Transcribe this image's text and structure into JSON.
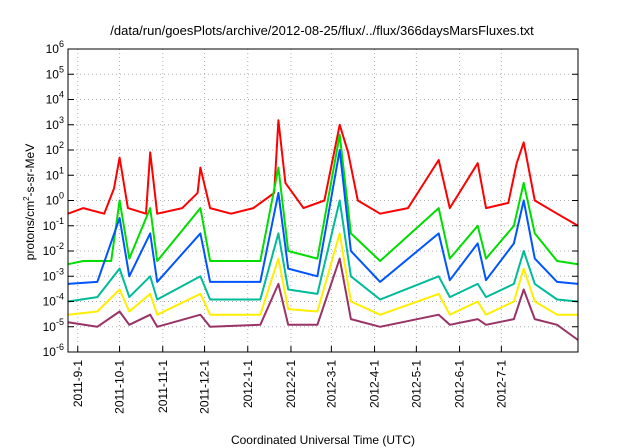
{
  "chart_data": {
    "type": "line",
    "title": "/data/run/goesPlots/archive/2012-08-25/flux/../flux/366daysMarsFluxes.txt",
    "xlabel": "Coordinated Universal Time (UTC)",
    "ylabel": "protons/cm2-s-sr-MeV",
    "ylabel_base": "protons/cm",
    "ylabel_sup": "2",
    "ylabel_rest": "-s-sr-MeV",
    "y_scale": "log",
    "ylim": [
      1e-06,
      1000000.0
    ],
    "xlim": [
      "2011-08-25",
      "2012-08-25"
    ],
    "grid": true,
    "legend": "none",
    "y_ticks": [
      {
        "base": "10",
        "exp": "-6",
        "value": 1e-06
      },
      {
        "base": "10",
        "exp": "-5",
        "value": 1e-05
      },
      {
        "base": "10",
        "exp": "-4",
        "value": 0.0001
      },
      {
        "base": "10",
        "exp": "-3",
        "value": 0.001
      },
      {
        "base": "10",
        "exp": "-2",
        "value": 0.01
      },
      {
        "base": "10",
        "exp": "-1",
        "value": 0.1
      },
      {
        "base": "10",
        "exp": "0",
        "value": 1
      },
      {
        "base": "10",
        "exp": "1",
        "value": 10
      },
      {
        "base": "10",
        "exp": "2",
        "value": 100
      },
      {
        "base": "10",
        "exp": "3",
        "value": 1000
      },
      {
        "base": "10",
        "exp": "4",
        "value": 10000
      },
      {
        "base": "10",
        "exp": "5",
        "value": 100000
      },
      {
        "base": "10",
        "exp": "6",
        "value": 1000000
      }
    ],
    "x_ticks": [
      {
        "label": "2011-9-1",
        "date": "2011-09-01"
      },
      {
        "label": "2011-10-1",
        "date": "2011-10-01"
      },
      {
        "label": "2011-11-1",
        "date": "2011-11-01"
      },
      {
        "label": "2011-12-1",
        "date": "2011-12-01"
      },
      {
        "label": "2012-1-1",
        "date": "2012-01-01"
      },
      {
        "label": "2012-2-1",
        "date": "2012-02-01"
      },
      {
        "label": "2012-3-1",
        "date": "2012-03-01"
      },
      {
        "label": "2012-4-1",
        "date": "2012-04-01"
      },
      {
        "label": "2012-5-1",
        "date": "2012-05-01"
      },
      {
        "label": "2012-6-1",
        "date": "2012-06-01"
      },
      {
        "label": "2012-7-1",
        "date": "2012-07-01"
      }
    ],
    "series": [
      {
        "color": "#ff0000",
        "points": [
          [
            "2011-08-25",
            0.3
          ],
          [
            "2011-09-05",
            0.5
          ],
          [
            "2011-09-20",
            0.3
          ],
          [
            "2011-09-27",
            3
          ],
          [
            "2011-10-01",
            50
          ],
          [
            "2011-10-07",
            0.5
          ],
          [
            "2011-10-20",
            0.3
          ],
          [
            "2011-10-23",
            80
          ],
          [
            "2011-10-28",
            0.3
          ],
          [
            "2011-11-15",
            0.5
          ],
          [
            "2011-11-26",
            2
          ],
          [
            "2011-11-28",
            20
          ],
          [
            "2011-12-05",
            0.5
          ],
          [
            "2011-12-20",
            0.3
          ],
          [
            "2012-01-05",
            0.5
          ],
          [
            "2012-01-20",
            2
          ],
          [
            "2012-01-23",
            1500
          ],
          [
            "2012-01-28",
            5
          ],
          [
            "2012-02-10",
            0.5
          ],
          [
            "2012-02-25",
            1
          ],
          [
            "2012-03-07",
            1000
          ],
          [
            "2012-03-13",
            80
          ],
          [
            "2012-03-20",
            1
          ],
          [
            "2012-04-05",
            0.3
          ],
          [
            "2012-04-25",
            0.5
          ],
          [
            "2012-05-17",
            40
          ],
          [
            "2012-05-25",
            0.5
          ],
          [
            "2012-06-14",
            30
          ],
          [
            "2012-06-20",
            0.5
          ],
          [
            "2012-07-06",
            0.8
          ],
          [
            "2012-07-12",
            30
          ],
          [
            "2012-07-17",
            200
          ],
          [
            "2012-07-25",
            1
          ],
          [
            "2012-08-10",
            0.3
          ],
          [
            "2012-08-25",
            0.1
          ]
        ]
      },
      {
        "color": "#00dd00",
        "points": [
          [
            "2011-08-25",
            0.003
          ],
          [
            "2011-09-05",
            0.004
          ],
          [
            "2011-09-25",
            0.004
          ],
          [
            "2011-10-01",
            1
          ],
          [
            "2011-10-08",
            0.005
          ],
          [
            "2011-10-23",
            0.5
          ],
          [
            "2011-10-28",
            0.004
          ],
          [
            "2011-11-28",
            0.5
          ],
          [
            "2011-12-05",
            0.004
          ],
          [
            "2012-01-10",
            0.004
          ],
          [
            "2012-01-23",
            20
          ],
          [
            "2012-01-30",
            0.01
          ],
          [
            "2012-02-20",
            0.005
          ],
          [
            "2012-03-07",
            400
          ],
          [
            "2012-03-15",
            0.05
          ],
          [
            "2012-04-05",
            0.004
          ],
          [
            "2012-05-17",
            0.5
          ],
          [
            "2012-05-25",
            0.005
          ],
          [
            "2012-06-14",
            0.1
          ],
          [
            "2012-06-20",
            0.005
          ],
          [
            "2012-07-10",
            0.1
          ],
          [
            "2012-07-17",
            5
          ],
          [
            "2012-07-25",
            0.05
          ],
          [
            "2012-08-10",
            0.004
          ],
          [
            "2012-08-25",
            0.003
          ]
        ]
      },
      {
        "color": "#0055ff",
        "points": [
          [
            "2011-08-25",
            0.0005
          ],
          [
            "2011-09-15",
            0.0006
          ],
          [
            "2011-10-01",
            0.2
          ],
          [
            "2011-10-08",
            0.001
          ],
          [
            "2011-10-23",
            0.05
          ],
          [
            "2011-10-28",
            0.0006
          ],
          [
            "2011-11-28",
            0.05
          ],
          [
            "2011-12-05",
            0.0006
          ],
          [
            "2012-01-10",
            0.0006
          ],
          [
            "2012-01-23",
            2
          ],
          [
            "2012-01-30",
            0.002
          ],
          [
            "2012-02-20",
            0.001
          ],
          [
            "2012-03-07",
            100
          ],
          [
            "2012-03-15",
            0.01
          ],
          [
            "2012-04-05",
            0.0006
          ],
          [
            "2012-05-17",
            0.05
          ],
          [
            "2012-05-25",
            0.0007
          ],
          [
            "2012-06-14",
            0.02
          ],
          [
            "2012-06-20",
            0.0007
          ],
          [
            "2012-07-10",
            0.02
          ],
          [
            "2012-07-17",
            1
          ],
          [
            "2012-07-25",
            0.005
          ],
          [
            "2012-08-10",
            0.0006
          ],
          [
            "2012-08-25",
            0.0005
          ]
        ]
      },
      {
        "color": "#00bb99",
        "points": [
          [
            "2011-08-25",
            0.0001
          ],
          [
            "2011-09-15",
            0.00015
          ],
          [
            "2011-10-01",
            0.002
          ],
          [
            "2011-10-08",
            0.00015
          ],
          [
            "2011-10-23",
            0.001
          ],
          [
            "2011-10-28",
            0.00012
          ],
          [
            "2011-11-28",
            0.001
          ],
          [
            "2011-12-05",
            0.00012
          ],
          [
            "2012-01-10",
            0.00012
          ],
          [
            "2012-01-23",
            0.05
          ],
          [
            "2012-01-30",
            0.0003
          ],
          [
            "2012-02-20",
            0.0002
          ],
          [
            "2012-03-07",
            1
          ],
          [
            "2012-03-15",
            0.001
          ],
          [
            "2012-04-05",
            0.00012
          ],
          [
            "2012-05-17",
            0.001
          ],
          [
            "2012-05-25",
            0.00015
          ],
          [
            "2012-06-14",
            0.0005
          ],
          [
            "2012-06-20",
            0.00015
          ],
          [
            "2012-07-10",
            0.0005
          ],
          [
            "2012-07-17",
            0.01
          ],
          [
            "2012-07-25",
            0.0005
          ],
          [
            "2012-08-10",
            0.00012
          ],
          [
            "2012-08-25",
            0.0001
          ]
        ]
      },
      {
        "color": "#ffee00",
        "points": [
          [
            "2011-08-25",
            3e-05
          ],
          [
            "2011-09-15",
            4e-05
          ],
          [
            "2011-10-01",
            0.0003
          ],
          [
            "2011-10-08",
            4e-05
          ],
          [
            "2011-10-23",
            0.0002
          ],
          [
            "2011-10-28",
            3e-05
          ],
          [
            "2011-11-28",
            0.0002
          ],
          [
            "2011-12-05",
            3e-05
          ],
          [
            "2012-01-10",
            3e-05
          ],
          [
            "2012-01-23",
            0.005
          ],
          [
            "2012-01-30",
            5e-05
          ],
          [
            "2012-02-20",
            4e-05
          ],
          [
            "2012-03-07",
            0.05
          ],
          [
            "2012-03-15",
            0.0001
          ],
          [
            "2012-04-05",
            3e-05
          ],
          [
            "2012-05-17",
            0.0002
          ],
          [
            "2012-05-25",
            3e-05
          ],
          [
            "2012-06-14",
            0.0001
          ],
          [
            "2012-06-20",
            3e-05
          ],
          [
            "2012-07-10",
            0.0001
          ],
          [
            "2012-07-17",
            0.002
          ],
          [
            "2012-07-25",
            0.0001
          ],
          [
            "2012-08-10",
            3e-05
          ],
          [
            "2012-08-25",
            3e-05
          ]
        ]
      },
      {
        "color": "#993366",
        "points": [
          [
            "2011-08-25",
            1.5e-05
          ],
          [
            "2011-09-15",
            1e-05
          ],
          [
            "2011-10-01",
            4e-05
          ],
          [
            "2011-10-08",
            1.2e-05
          ],
          [
            "2011-10-23",
            3e-05
          ],
          [
            "2011-10-28",
            1e-05
          ],
          [
            "2011-11-28",
            3e-05
          ],
          [
            "2011-12-05",
            1e-05
          ],
          [
            "2012-01-10",
            1.2e-05
          ],
          [
            "2012-01-23",
            0.0005
          ],
          [
            "2012-01-30",
            1.2e-05
          ],
          [
            "2012-02-20",
            1.2e-05
          ],
          [
            "2012-03-07",
            0.005
          ],
          [
            "2012-03-15",
            2e-05
          ],
          [
            "2012-04-05",
            1e-05
          ],
          [
            "2012-05-17",
            3e-05
          ],
          [
            "2012-05-25",
            1.2e-05
          ],
          [
            "2012-06-14",
            2e-05
          ],
          [
            "2012-06-20",
            1.2e-05
          ],
          [
            "2012-07-10",
            2e-05
          ],
          [
            "2012-07-17",
            0.0003
          ],
          [
            "2012-07-25",
            2e-05
          ],
          [
            "2012-08-10",
            1.2e-05
          ],
          [
            "2012-08-25",
            3e-06
          ]
        ]
      }
    ]
  }
}
